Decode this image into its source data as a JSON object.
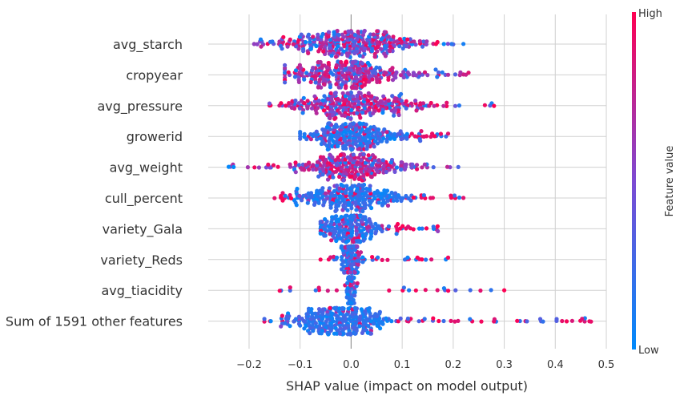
{
  "chart_data": {
    "type": "scatter",
    "subtype": "shap-beeswarm",
    "title": "",
    "xlabel": "SHAP value (impact on model output)",
    "xlim": [
      -0.28,
      0.5
    ],
    "x_ticks": [
      -0.2,
      -0.1,
      0.0,
      0.1,
      0.2,
      0.3,
      0.4,
      0.5
    ],
    "x_tick_labels": [
      "−0.2",
      "−0.1",
      "0.0",
      "0.1",
      "0.2",
      "0.3",
      "0.4",
      "0.5"
    ],
    "grid": true,
    "colorbar": {
      "label": "Feature value",
      "high_label": "High",
      "low_label": "Low",
      "low_color": "#008afb",
      "mid_color": "#7d4ad3",
      "high_color": "#ff0052"
    },
    "features": [
      {
        "name": "avg_starch",
        "min": -0.19,
        "max": 0.22,
        "center": 0.0,
        "spread": 0.07,
        "color_trend": 0.0,
        "density": 1.0
      },
      {
        "name": "cropyear",
        "min": -0.13,
        "max": 0.23,
        "center": -0.01,
        "spread": 0.06,
        "color_trend": 0.2,
        "density": 0.9
      },
      {
        "name": "avg_pressure",
        "min": -0.16,
        "max": 0.28,
        "center": 0.0,
        "spread": 0.06,
        "color_trend": 0.3,
        "density": 0.9
      },
      {
        "name": "growerid",
        "min": -0.1,
        "max": 0.19,
        "center": 0.0,
        "spread": 0.05,
        "color_trend": -0.6,
        "density": 0.8
      },
      {
        "name": "avg_weight",
        "min": -0.24,
        "max": 0.21,
        "center": 0.0,
        "spread": 0.05,
        "color_trend": 0.4,
        "density": 0.85
      },
      {
        "name": "cull_percent",
        "min": -0.15,
        "max": 0.22,
        "center": 0.0,
        "spread": 0.05,
        "color_trend": -0.7,
        "density": 0.8
      },
      {
        "name": "variety_Gala",
        "min": -0.06,
        "max": 0.17,
        "center": 0.0,
        "spread": 0.03,
        "color_trend": -0.5,
        "density": 0.65
      },
      {
        "name": "variety_Reds",
        "min": -0.06,
        "max": 0.19,
        "center": 0.0,
        "spread": 0.01,
        "color_trend": -0.5,
        "density": 0.45
      },
      {
        "name": "avg_tiacidity",
        "min": -0.14,
        "max": 0.3,
        "center": 0.0,
        "spread": 0.005,
        "color_trend": -0.8,
        "density": 0.3
      },
      {
        "name": "Sum of 1591 other features",
        "min": -0.17,
        "max": 0.47,
        "center": -0.02,
        "spread": 0.05,
        "color_trend": -0.9,
        "density": 1.0
      }
    ]
  }
}
